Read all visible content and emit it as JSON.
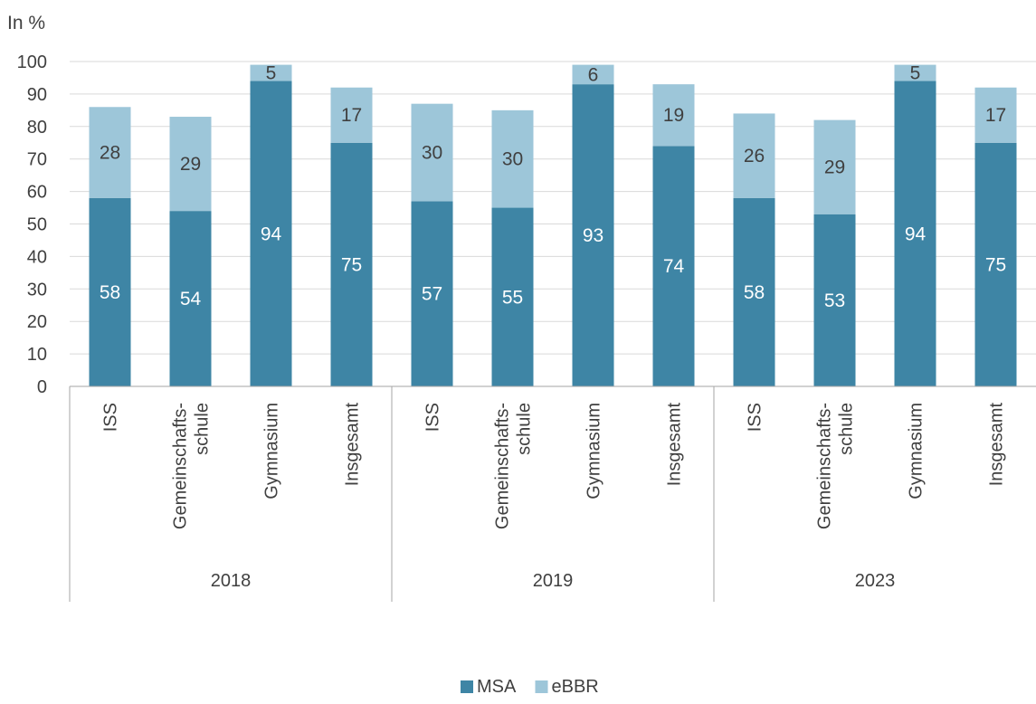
{
  "chart_data": {
    "type": "bar",
    "stacked": true,
    "unit_label": "In %",
    "ylim": [
      0,
      100
    ],
    "yticks": [
      0,
      10,
      20,
      30,
      40,
      50,
      60,
      70,
      80,
      90,
      100
    ],
    "grid": true,
    "legend_position": "bottom-center",
    "groups": [
      {
        "label": "2018",
        "categories": [
          "ISS",
          "Gemeinschafts-schule",
          "Gymnasium",
          "Insgesamt"
        ]
      },
      {
        "label": "2019",
        "categories": [
          "ISS",
          "Gemeinschafts-schule",
          "Gymnasium",
          "Insgesamt"
        ]
      },
      {
        "label": "2023",
        "categories": [
          "ISS",
          "Gemeinschafts-schule",
          "Gymnasium",
          "Insgesamt"
        ]
      }
    ],
    "series": [
      {
        "name": "MSA",
        "color": "#3e85a5",
        "label_color": "#ffffff",
        "values": [
          58,
          54,
          94,
          75,
          57,
          55,
          93,
          74,
          58,
          53,
          94,
          75
        ]
      },
      {
        "name": "eBBR",
        "color": "#9dc6d9",
        "label_color": "#404040",
        "values": [
          28,
          29,
          5,
          17,
          30,
          30,
          6,
          19,
          26,
          29,
          5,
          17
        ]
      }
    ]
  }
}
